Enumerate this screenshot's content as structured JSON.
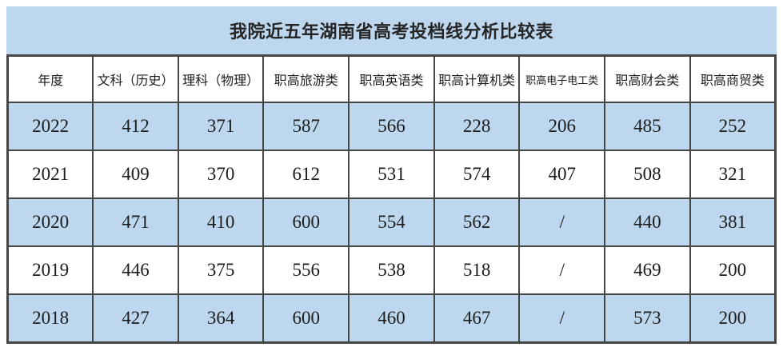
{
  "chart_data": {
    "type": "table",
    "title": "我院近五年湖南省高考投档线分析比较表",
    "columns": [
      "年度",
      "文科（历史）",
      "理科（物理）",
      "职高旅游类",
      "职高英语类",
      "职高计算机类",
      "职高电子电工类",
      "职高财会类",
      "职高商贸类"
    ],
    "rows": [
      [
        "2022",
        "412",
        "371",
        "587",
        "566",
        "228",
        "206",
        "485",
        "252"
      ],
      [
        "2021",
        "409",
        "370",
        "612",
        "531",
        "574",
        "407",
        "508",
        "321"
      ],
      [
        "2020",
        "471",
        "410",
        "600",
        "554",
        "562",
        "/",
        "440",
        "381"
      ],
      [
        "2019",
        "446",
        "375",
        "556",
        "538",
        "518",
        "/",
        "469",
        "200"
      ],
      [
        "2018",
        "427",
        "364",
        "600",
        "460",
        "467",
        "/",
        "573",
        "200"
      ]
    ],
    "layout_hints": {
      "banded_rows": true,
      "banded_row_indices_blue": [
        0,
        2,
        4
      ],
      "header_background": "#FFFFFF",
      "legend": "none",
      "grid": "on"
    }
  },
  "colors": {
    "band": "#BDD7EE",
    "plain": "#FFFFFF",
    "border": "#454545",
    "text": "#1C1C1C",
    "background": "#FFFFFF"
  }
}
